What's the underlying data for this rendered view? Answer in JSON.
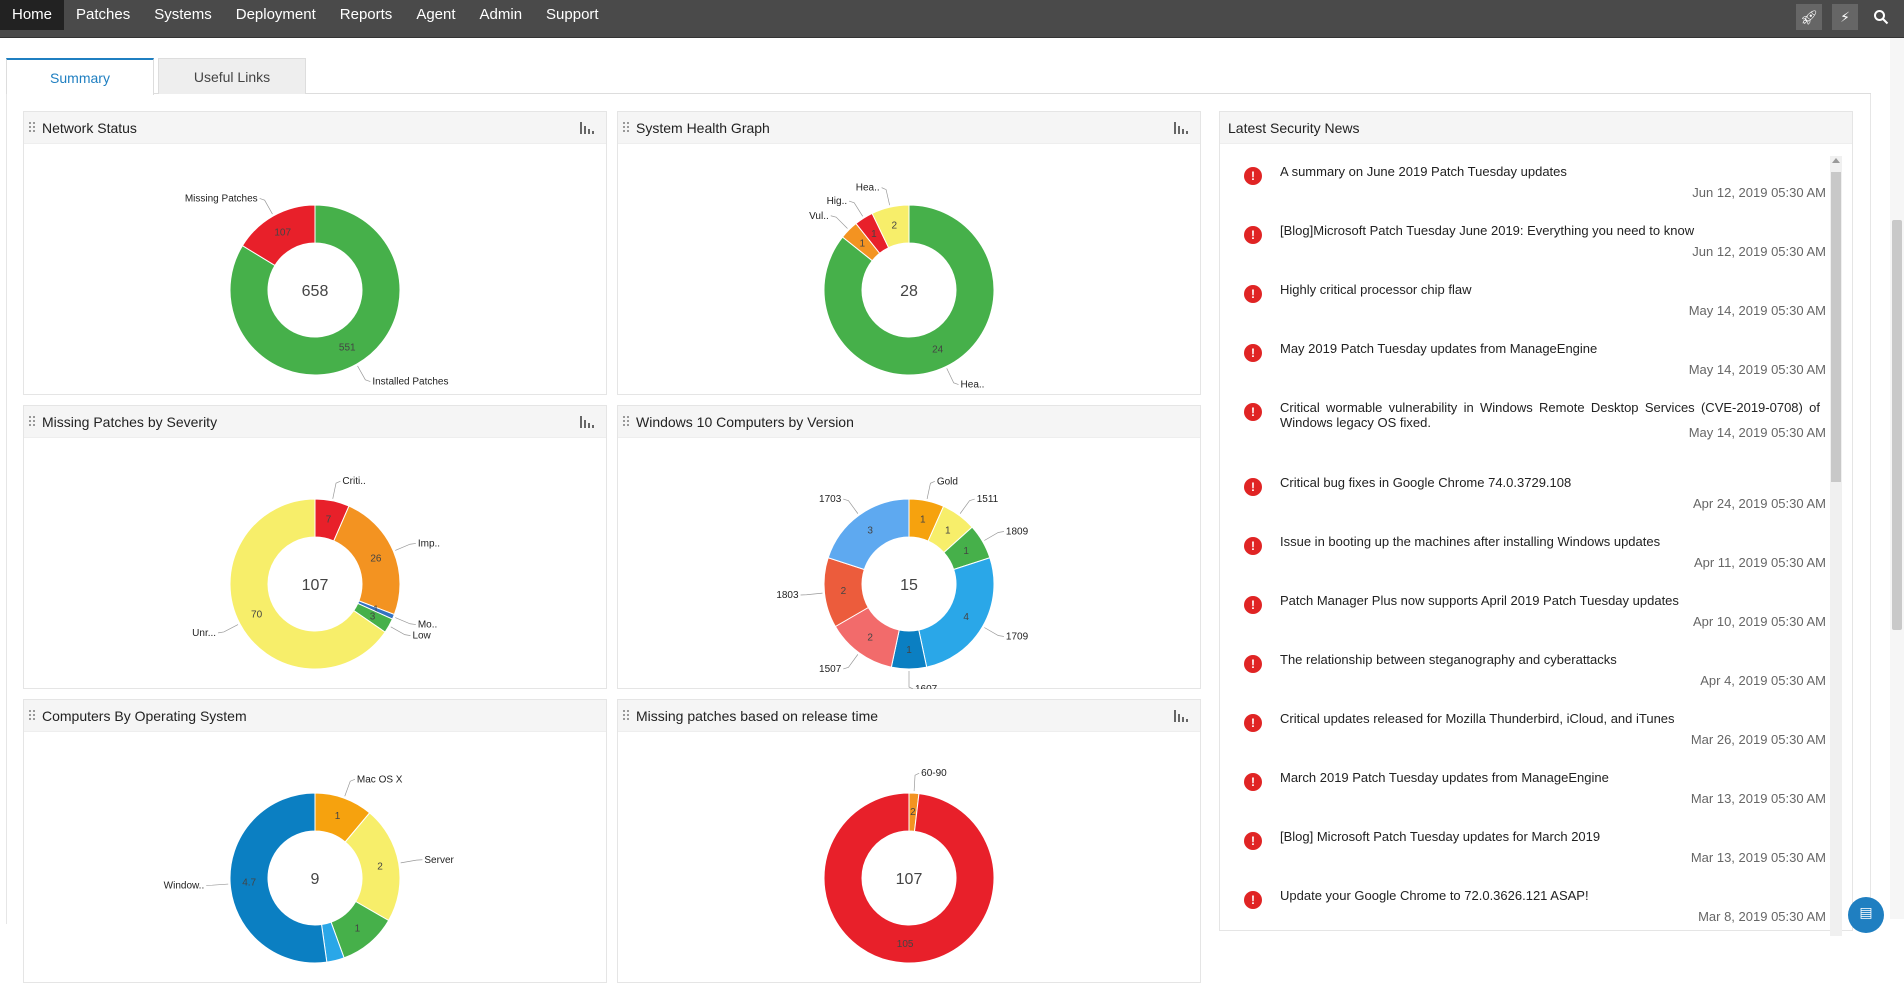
{
  "nav": {
    "items": [
      "Home",
      "Patches",
      "Systems",
      "Deployment",
      "Reports",
      "Agent",
      "Admin",
      "Support"
    ],
    "active": "Home"
  },
  "tabs": {
    "summary": "Summary",
    "useful_links": "Useful Links"
  },
  "colors": {
    "green": "#46b04a",
    "red": "#e8202a",
    "yellow": "#f7ee6a",
    "orange": "#f39321",
    "amber": "#f6a20e",
    "blue": "#2aa7e8",
    "dark_blue": "#0b7fc2",
    "light_blue": "#5ea9f0",
    "salmon": "#f26b6b",
    "tomato": "#ec5c3c",
    "mid_blue": "#3472c0"
  },
  "widgets": {
    "network_status": "Network Status",
    "system_health": "System Health Graph",
    "missing_by_severity": "Missing Patches by Severity",
    "win10_by_version": "Windows 10 Computers by Version",
    "computers_by_os": "Computers By Operating System",
    "missing_by_release": "Missing patches based on release time"
  },
  "chart_data": [
    {
      "type": "pie",
      "id": "network_status",
      "total": "658",
      "slices": [
        {
          "label": "Installed Patches",
          "value": 551,
          "color": "#46b04a"
        },
        {
          "label": "Missing Patches",
          "value": 107,
          "color": "#e8202a"
        }
      ]
    },
    {
      "type": "pie",
      "id": "system_health",
      "total": "28",
      "slices": [
        {
          "label": "Hea..",
          "value": 24,
          "color": "#46b04a"
        },
        {
          "label": "Vul..",
          "value": 1,
          "color": "#f39321"
        },
        {
          "label": "Hig..",
          "value": 1,
          "color": "#e8202a"
        },
        {
          "label": "Hea..",
          "value": 2,
          "color": "#f7ee6a"
        }
      ]
    },
    {
      "type": "pie",
      "id": "missing_by_severity",
      "total": "107",
      "slices": [
        {
          "label": "Criti..",
          "value": 7,
          "color": "#e8202a"
        },
        {
          "label": "Imp..",
          "value": 26,
          "color": "#f39321"
        },
        {
          "label": "Mo..",
          "value": 1,
          "color": "#3472c0"
        },
        {
          "label": "Low",
          "value": 3,
          "color": "#46b04a"
        },
        {
          "label": "Unr...",
          "value": 70,
          "color": "#f7ee6a"
        }
      ]
    },
    {
      "type": "pie",
      "id": "win10_by_version",
      "total": "15",
      "slices": [
        {
          "label": "Gold",
          "value": 1,
          "color": "#f6a20e"
        },
        {
          "label": "1511",
          "value": 1,
          "color": "#f7ee6a"
        },
        {
          "label": "1809",
          "value": 1,
          "color": "#46b04a"
        },
        {
          "label": "1709",
          "value": 4,
          "color": "#2aa7e8"
        },
        {
          "label": "1607",
          "value": 1,
          "color": "#0b7fc2"
        },
        {
          "label": "1507",
          "value": 2,
          "color": "#f26b6b"
        },
        {
          "label": "1803",
          "value": 2,
          "color": "#ec5c3c"
        },
        {
          "label": "1703",
          "value": 3,
          "color": "#5ea9f0"
        }
      ]
    },
    {
      "type": "pie",
      "id": "computers_by_os",
      "total": "9",
      "slices": [
        {
          "label": "Mac OS X",
          "value": 1,
          "color": "#f6a20e"
        },
        {
          "label": "Server",
          "value": 2,
          "color": "#f7ee6a"
        },
        {
          "label": "",
          "value": 1,
          "color": "#46b04a"
        },
        {
          "label": "",
          "value": 0.3,
          "color": "#2aa7e8"
        },
        {
          "label": "Window..",
          "value": 4.7,
          "color": "#0b7fc2"
        }
      ]
    },
    {
      "type": "pie",
      "id": "missing_by_release",
      "total": "107",
      "slices": [
        {
          "label": "60-90",
          "value": 2,
          "color": "#f39321"
        },
        {
          "label": "",
          "value": 105,
          "color": "#e8202a"
        }
      ]
    }
  ],
  "news": {
    "title": "Latest Security News",
    "items": [
      {
        "title": "A summary on June 2019 Patch Tuesday updates",
        "date": "Jun 12, 2019 05:30 AM"
      },
      {
        "title": "[Blog]Microsoft Patch Tuesday June 2019: Everything you need to know",
        "date": "Jun 12, 2019 05:30 AM"
      },
      {
        "title": "Highly critical processor chip flaw",
        "date": "May 14, 2019 05:30 AM"
      },
      {
        "title": "May 2019 Patch Tuesday updates from ManageEngine",
        "date": "May 14, 2019 05:30 AM"
      },
      {
        "title": "Critical wormable vulnerability in Windows Remote Desktop Services (CVE-2019-0708) of Windows legacy OS fixed.",
        "date": "May 14, 2019 05:30 AM"
      },
      {
        "title": "Critical bug fixes in Google Chrome 74.0.3729.108",
        "date": "Apr 24, 2019 05:30 AM"
      },
      {
        "title": "Issue in booting up the machines after installing Windows updates",
        "date": "Apr 11, 2019 05:30 AM"
      },
      {
        "title": "Patch Manager Plus now supports April 2019 Patch Tuesday updates",
        "date": "Apr 10, 2019 05:30 AM"
      },
      {
        "title": "The relationship between steganography and cyberattacks",
        "date": "Apr 4, 2019 05:30 AM"
      },
      {
        "title": "Critical updates released for Mozilla Thunderbird, iCloud, and iTunes",
        "date": "Mar 26, 2019 05:30 AM"
      },
      {
        "title": "March 2019 Patch Tuesday updates from ManageEngine",
        "date": "Mar 13, 2019 05:30 AM"
      },
      {
        "title": "[Blog] Microsoft Patch Tuesday updates for March 2019",
        "date": "Mar 13, 2019 05:30 AM"
      },
      {
        "title": "Update your Google Chrome to 72.0.3626.121 ASAP!",
        "date": "Mar 8, 2019 05:30 AM"
      }
    ]
  }
}
